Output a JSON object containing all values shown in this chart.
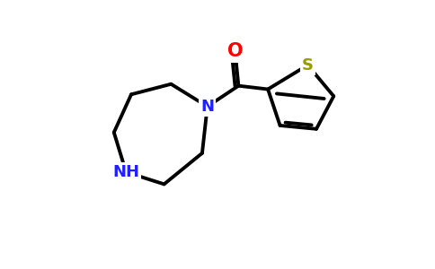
{
  "bg_color": "#ffffff",
  "bond_color": "#000000",
  "bond_width": 2.8,
  "N_color": "#2020ff",
  "O_color": "#ff0000",
  "S_color": "#999900",
  "font_size_N": 13,
  "font_size_NH": 13,
  "font_size_O": 15,
  "font_size_S": 13,
  "fig_width": 4.84,
  "fig_height": 3.0,
  "dpi": 100,
  "xlim": [
    0,
    9.5
  ],
  "ylim": [
    0,
    6.0
  ],
  "N1": [
    4.3,
    3.85
  ],
  "C2": [
    3.25,
    4.5
  ],
  "C3": [
    2.1,
    4.2
  ],
  "C4": [
    1.6,
    3.1
  ],
  "N5": [
    1.95,
    1.95
  ],
  "C6": [
    3.05,
    1.6
  ],
  "C7": [
    4.15,
    2.5
  ],
  "Cc": [
    5.2,
    4.45
  ],
  "O": [
    5.1,
    5.45
  ],
  "th_C2": [
    6.05,
    4.35
  ],
  "th_C3": [
    6.4,
    3.3
  ],
  "th_C4": [
    7.45,
    3.2
  ],
  "th_C5": [
    7.95,
    4.15
  ],
  "th_S": [
    7.2,
    5.05
  ]
}
